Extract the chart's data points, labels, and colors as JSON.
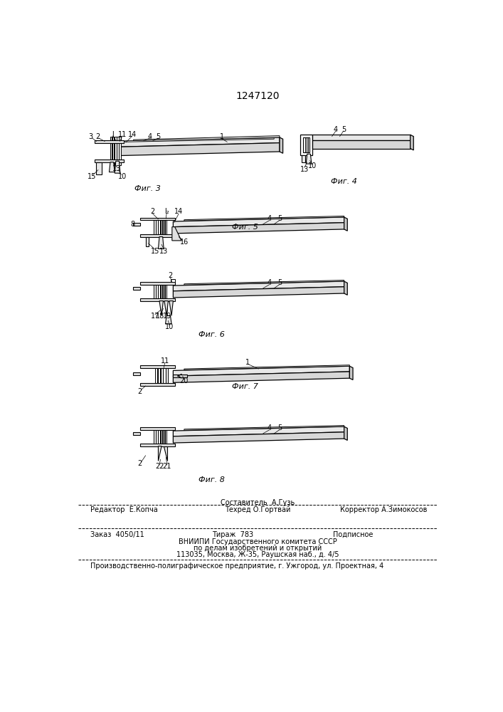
{
  "title": "1247120",
  "bg_color": "#ffffff",
  "footer_line1_left": "Редактор  Е.Копча",
  "footer_col1_line1": "Составитель  А.Гузь",
  "footer_col1_line2": "Техред О.Гортвай",
  "footer_line1_right": "Корректор А.Зимокосов",
  "footer_line2a": "Заказ  4050/11",
  "footer_line2b": "Тираж  783",
  "footer_line2c": "Подписное",
  "footer_line3": "ВНИИПИ Государственного комитета СССР",
  "footer_line4": "по делам изобретений и открытий",
  "footer_line5": "113035, Москва, Ж-35, Раушская наб., д. 4/5",
  "footer_last": "Производственно-полиграфическое предприятие, г. Ужгород, ул. Проектная, 4"
}
